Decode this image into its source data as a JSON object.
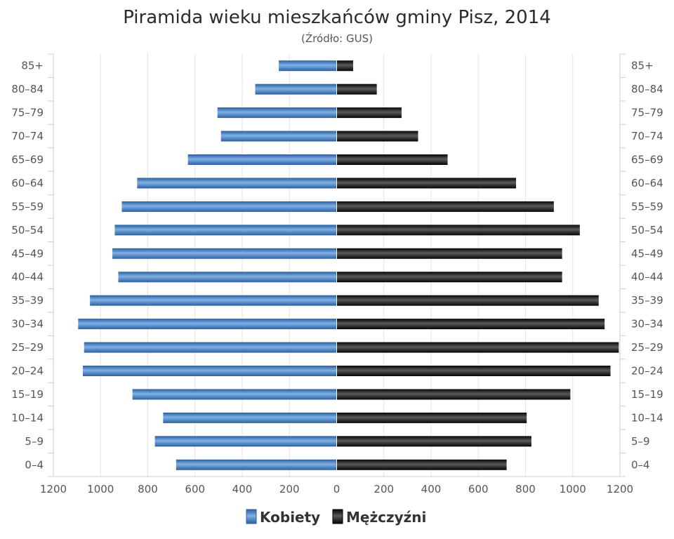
{
  "chart_data": {
    "type": "bar",
    "orientation": "horizontal",
    "layout": "population-pyramid",
    "title": "Piramida wieku mieszkańców gminy Pisz, 2014",
    "subtitle": "(Źródło: GUS)",
    "categories": [
      "85+",
      "80–84",
      "75–79",
      "70–74",
      "65–69",
      "60–64",
      "55–59",
      "50–54",
      "45–49",
      "40–44",
      "35–39",
      "30–34",
      "25–29",
      "20–24",
      "15–19",
      "10–14",
      "5–9",
      "0–4"
    ],
    "series": [
      {
        "name": "Kobiety",
        "side": "left",
        "color": "#3d78bd",
        "values": [
          245,
          345,
          505,
          490,
          630,
          845,
          910,
          940,
          950,
          925,
          1045,
          1095,
          1070,
          1075,
          865,
          735,
          770,
          680
        ]
      },
      {
        "name": "Mężczyźni",
        "side": "right",
        "color": "#141414",
        "values": [
          70,
          170,
          275,
          345,
          470,
          760,
          920,
          1030,
          955,
          955,
          1110,
          1135,
          1195,
          1160,
          990,
          805,
          825,
          720
        ]
      }
    ],
    "xaxis": {
      "ticks": [
        "1200",
        "1000",
        "800",
        "600",
        "400",
        "200",
        "0",
        "200",
        "400",
        "600",
        "800",
        "1000",
        "1200"
      ],
      "range": [
        -1200,
        1200
      ]
    },
    "grid": true,
    "legend_position": "bottom-center"
  }
}
